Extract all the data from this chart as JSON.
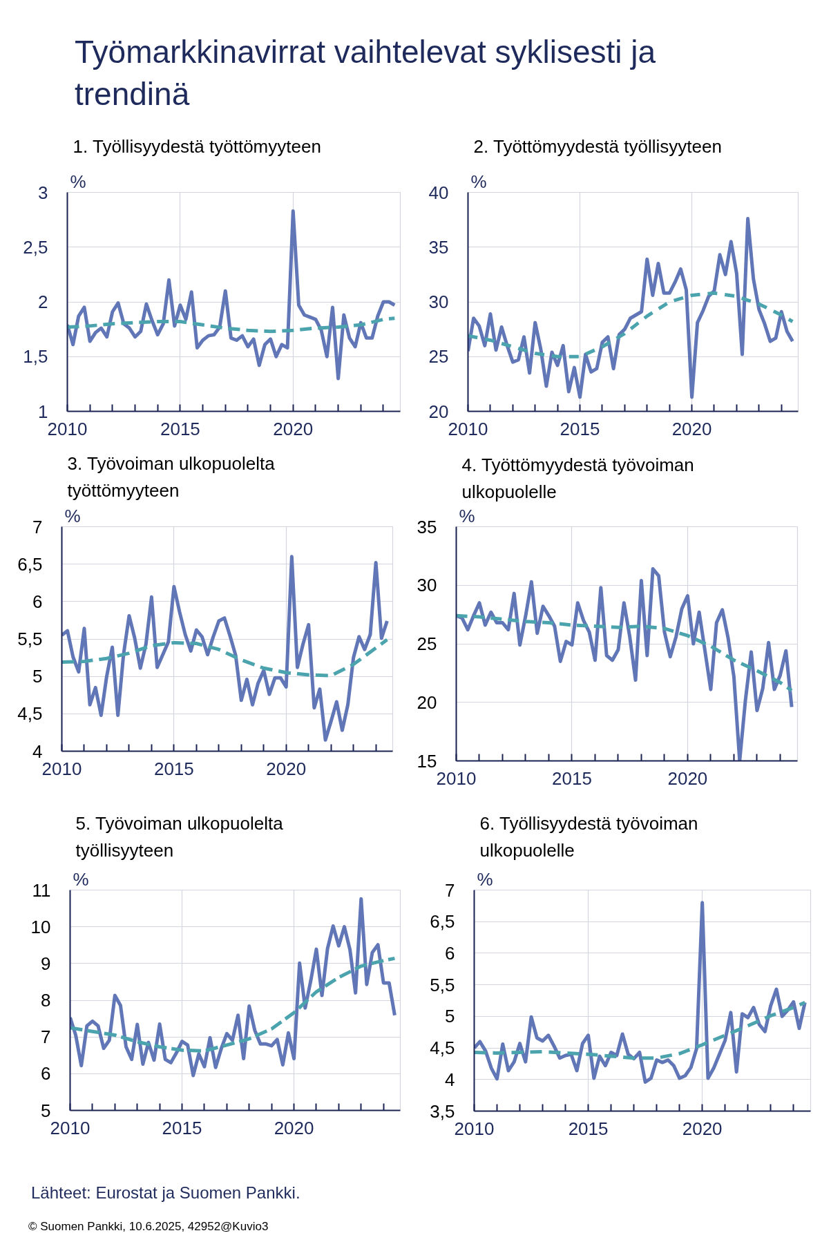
{
  "chart_data": [
    {
      "type": "other",
      "title": "Työmarkkinavirrat vaihtelevat syklisesti ja trendinä"
    },
    {
      "type": "line",
      "title": "1. Työllisyydestä työttömyyteen",
      "ylabel": "%",
      "grid": true,
      "x": [
        2010,
        2010.25,
        2010.5,
        2010.75,
        2011,
        2011.25,
        2011.5,
        2011.75,
        2012,
        2012.25,
        2012.5,
        2012.75,
        2013,
        2013.25,
        2013.5,
        2013.75,
        2014,
        2014.25,
        2014.5,
        2014.75,
        2015,
        2015.25,
        2015.5,
        2015.75,
        2016,
        2016.25,
        2016.5,
        2016.75,
        2017,
        2017.25,
        2017.5,
        2017.75,
        2018,
        2018.25,
        2018.5,
        2018.75,
        2019,
        2019.25,
        2019.5,
        2019.75,
        2020,
        2020.25,
        2020.5,
        2020.75,
        2021,
        2021.25,
        2021.5,
        2021.75,
        2022,
        2022.25,
        2022.5,
        2022.75,
        2023,
        2023.25,
        2023.5,
        2023.75,
        2024,
        2024.25,
        2024.5
      ],
      "xlim": [
        2010,
        2024.75
      ],
      "xticks": [
        2010,
        {
          "value": 2011,
          "label": null
        },
        {
          "value": 2012,
          "label": null
        },
        {
          "value": 2013,
          "label": null
        },
        {
          "value": 2014,
          "label": null
        },
        2015,
        {
          "value": 2016,
          "label": null
        },
        {
          "value": 2017,
          "label": null
        },
        {
          "value": 2018,
          "label": null
        },
        {
          "value": 2019,
          "label": null
        },
        2020,
        {
          "value": 2021,
          "label": null
        },
        {
          "value": 2022,
          "label": null
        },
        {
          "value": 2023,
          "label": null
        },
        {
          "value": 2024,
          "label": null
        }
      ],
      "ylim": [
        1,
        3
      ],
      "yticks": [
        1,
        {
          "value": 1.5,
          "label": "1,5"
        },
        2,
        {
          "value": 2.5,
          "label": "2,5"
        },
        3
      ],
      "series": [
        {
          "color": "#6176b6",
          "line_style": "solid",
          "values": [
            1.79,
            1.61,
            1.87,
            1.95,
            1.64,
            1.72,
            1.76,
            1.68,
            1.91,
            1.99,
            1.8,
            1.76,
            1.68,
            1.73,
            1.98,
            1.83,
            1.7,
            1.8,
            2.2,
            1.78,
            1.97,
            1.84,
            2.09,
            1.58,
            1.65,
            1.69,
            1.7,
            1.77,
            2.1,
            1.67,
            1.65,
            1.69,
            1.59,
            1.66,
            1.42,
            1.61,
            1.66,
            1.5,
            1.61,
            1.58,
            2.83,
            1.97,
            1.88,
            1.86,
            1.84,
            1.74,
            1.5,
            1.95,
            1.3,
            1.88,
            1.67,
            1.59,
            1.81,
            1.67,
            1.67,
            1.87,
            2.0,
            2.0,
            1.97
          ]
        },
        {
          "color": "#4ba4ad",
          "line_style": "dashed",
          "x": [
            2010,
            2011,
            2012,
            2013,
            2014,
            2015,
            2016,
            2017,
            2018,
            2019,
            2020,
            2021,
            2022,
            2023,
            2024,
            2024.5
          ],
          "values": [
            1.77,
            1.78,
            1.8,
            1.81,
            1.82,
            1.82,
            1.79,
            1.76,
            1.74,
            1.73,
            1.74,
            1.76,
            1.77,
            1.79,
            1.84,
            1.85
          ]
        }
      ]
    },
    {
      "type": "line",
      "title": "2. Työttömyydestä työllisyyteen",
      "ylabel": "%",
      "grid": true,
      "x": [
        2010,
        2010.25,
        2010.5,
        2010.75,
        2011,
        2011.25,
        2011.5,
        2011.75,
        2012,
        2012.25,
        2012.5,
        2012.75,
        2013,
        2013.25,
        2013.5,
        2013.75,
        2014,
        2014.25,
        2014.5,
        2014.75,
        2015,
        2015.25,
        2015.5,
        2015.75,
        2016,
        2016.25,
        2016.5,
        2016.75,
        2017,
        2017.25,
        2017.5,
        2017.75,
        2018,
        2018.25,
        2018.5,
        2018.75,
        2019,
        2019.25,
        2019.5,
        2019.75,
        2020,
        2020.25,
        2020.5,
        2020.75,
        2021,
        2021.25,
        2021.5,
        2021.75,
        2022,
        2022.25,
        2022.5,
        2022.75,
        2023,
        2023.25,
        2023.5,
        2023.75,
        2024,
        2024.25,
        2024.5
      ],
      "xlim": [
        2010,
        2024.75
      ],
      "xticks": [
        2010,
        {
          "value": 2011,
          "label": null
        },
        {
          "value": 2012,
          "label": null
        },
        {
          "value": 2013,
          "label": null
        },
        {
          "value": 2014,
          "label": null
        },
        2015,
        {
          "value": 2016,
          "label": null
        },
        {
          "value": 2017,
          "label": null
        },
        {
          "value": 2018,
          "label": null
        },
        {
          "value": 2019,
          "label": null
        },
        2020,
        {
          "value": 2021,
          "label": null
        },
        {
          "value": 2022,
          "label": null
        },
        {
          "value": 2023,
          "label": null
        },
        {
          "value": 2024,
          "label": null
        }
      ],
      "ylim": [
        20,
        40
      ],
      "yticks": [
        20,
        25,
        30,
        35,
        40
      ],
      "series": [
        {
          "color": "#6176b6",
          "line_style": "solid",
          "values": [
            25.5,
            28.5,
            27.8,
            26.0,
            28.9,
            25.6,
            27.7,
            26.0,
            24.5,
            24.7,
            26.8,
            23.5,
            28.1,
            25.7,
            22.3,
            25.4,
            24.2,
            26.0,
            21.8,
            24.0,
            21.3,
            25.2,
            23.6,
            23.9,
            26.3,
            26.8,
            23.9,
            27.0,
            27.5,
            28.5,
            28.8,
            29.1,
            33.9,
            30.6,
            33.5,
            30.8,
            30.8,
            31.8,
            33.0,
            31.1,
            21.3,
            28.1,
            29.2,
            30.5,
            31.0,
            34.3,
            32.5,
            35.5,
            32.6,
            25.2,
            37.6,
            32.1,
            29.3,
            28.0,
            26.4,
            26.7,
            29.1,
            27.3,
            26.4
          ]
        },
        {
          "color": "#4ba4ad",
          "line_style": "dashed",
          "x": [
            2010,
            2011,
            2012,
            2013,
            2014,
            2015,
            2016,
            2017,
            2018,
            2019,
            2020,
            2021,
            2022,
            2023,
            2024,
            2024.5
          ],
          "values": [
            26.9,
            26.5,
            25.9,
            25.3,
            25.0,
            25.0,
            25.9,
            27.1,
            28.7,
            30.0,
            30.6,
            30.8,
            30.5,
            29.8,
            28.8,
            28.2
          ]
        }
      ]
    },
    {
      "type": "line",
      "title": "3. Työvoiman ulkopuolelta työttömyyteen",
      "ylabel": "%",
      "grid": true,
      "x": [
        2010,
        2010.25,
        2010.5,
        2010.75,
        2011,
        2011.25,
        2011.5,
        2011.75,
        2012,
        2012.25,
        2012.5,
        2012.75,
        2013,
        2013.25,
        2013.5,
        2013.75,
        2014,
        2014.25,
        2014.5,
        2014.75,
        2015,
        2015.25,
        2015.5,
        2015.75,
        2016,
        2016.25,
        2016.5,
        2016.75,
        2017,
        2017.25,
        2017.5,
        2017.75,
        2018,
        2018.25,
        2018.5,
        2018.75,
        2019,
        2019.25,
        2019.5,
        2019.75,
        2020,
        2020.25,
        2020.5,
        2020.75,
        2021,
        2021.25,
        2021.5,
        2021.75,
        2022,
        2022.25,
        2022.5,
        2022.75,
        2023,
        2023.25,
        2023.5,
        2023.75,
        2024,
        2024.25,
        2024.5
      ],
      "xlim": [
        2010,
        2024.75
      ],
      "xticks": [
        2010,
        {
          "value": 2011,
          "label": null
        },
        {
          "value": 2012,
          "label": null
        },
        {
          "value": 2013,
          "label": null
        },
        {
          "value": 2014,
          "label": null
        },
        2015,
        {
          "value": 2016,
          "label": null
        },
        {
          "value": 2017,
          "label": null
        },
        {
          "value": 2018,
          "label": null
        },
        {
          "value": 2019,
          "label": null
        },
        2020,
        {
          "value": 2021,
          "label": null
        },
        {
          "value": 2022,
          "label": null
        },
        {
          "value": 2023,
          "label": null
        },
        {
          "value": 2024,
          "label": null
        }
      ],
      "ylim": [
        4,
        7
      ],
      "yticks": [
        4,
        {
          "value": 4.5,
          "label": "4,5"
        },
        5,
        {
          "value": 5.5,
          "label": "5,5"
        },
        6,
        {
          "value": 6.5,
          "label": "6,5"
        },
        7
      ],
      "series": [
        {
          "color": "#6176b6",
          "line_style": "solid",
          "values": [
            5.55,
            5.61,
            5.26,
            5.06,
            5.64,
            4.62,
            4.85,
            4.48,
            5.0,
            5.39,
            4.48,
            5.29,
            5.81,
            5.51,
            5.11,
            5.43,
            6.06,
            5.12,
            5.29,
            5.46,
            6.2,
            5.86,
            5.56,
            5.34,
            5.62,
            5.53,
            5.29,
            5.53,
            5.74,
            5.78,
            5.54,
            5.28,
            4.68,
            4.96,
            4.62,
            4.91,
            5.08,
            4.76,
            4.98,
            4.98,
            4.86,
            6.6,
            5.12,
            5.43,
            5.69,
            4.58,
            4.83,
            4.15,
            4.4,
            4.66,
            4.28,
            4.62,
            5.25,
            5.53,
            5.36,
            5.56,
            6.52,
            5.51,
            5.74
          ]
        },
        {
          "color": "#4ba4ad",
          "line_style": "dashed",
          "x": [
            2010,
            2011,
            2012,
            2013,
            2014,
            2015,
            2016,
            2017,
            2018,
            2019,
            2020,
            2021,
            2022,
            2023,
            2024,
            2024.5
          ],
          "values": [
            5.19,
            5.2,
            5.24,
            5.31,
            5.41,
            5.45,
            5.44,
            5.36,
            5.22,
            5.11,
            5.05,
            5.02,
            5.01,
            5.16,
            5.38,
            5.49
          ]
        }
      ]
    },
    {
      "type": "line",
      "title": "4. Työttömyydestä työvoiman ulkopuolelle",
      "ylabel": "%",
      "grid": true,
      "x": [
        2010,
        2010.25,
        2010.5,
        2010.75,
        2011,
        2011.25,
        2011.5,
        2011.75,
        2012,
        2012.25,
        2012.5,
        2012.75,
        2013,
        2013.25,
        2013.5,
        2013.75,
        2014,
        2014.25,
        2014.5,
        2014.75,
        2015,
        2015.25,
        2015.5,
        2015.75,
        2016,
        2016.25,
        2016.5,
        2016.75,
        2017,
        2017.25,
        2017.5,
        2017.75,
        2018,
        2018.25,
        2018.5,
        2018.75,
        2019,
        2019.25,
        2019.5,
        2019.75,
        2020,
        2020.25,
        2020.5,
        2020.75,
        2021,
        2021.25,
        2021.5,
        2021.75,
        2022,
        2022.25,
        2022.5,
        2022.75,
        2023,
        2023.25,
        2023.5,
        2023.75,
        2024,
        2024.25,
        2024.5
      ],
      "xlim": [
        2010,
        2024.75
      ],
      "xticks": [
        2010,
        {
          "value": 2011,
          "label": null
        },
        {
          "value": 2012,
          "label": null
        },
        {
          "value": 2013,
          "label": null
        },
        {
          "value": 2014,
          "label": null
        },
        2015,
        {
          "value": 2016,
          "label": null
        },
        {
          "value": 2017,
          "label": null
        },
        {
          "value": 2018,
          "label": null
        },
        {
          "value": 2019,
          "label": null
        },
        2020,
        {
          "value": 2021,
          "label": null
        },
        {
          "value": 2022,
          "label": null
        },
        {
          "value": 2023,
          "label": null
        },
        {
          "value": 2024,
          "label": null
        }
      ],
      "ylim": [
        15,
        35
      ],
      "yticks": [
        15,
        20,
        25,
        30,
        35
      ],
      "series": [
        {
          "color": "#6176b6",
          "line_style": "solid",
          "values": [
            27.4,
            27.2,
            26.2,
            27.4,
            28.5,
            26.6,
            27.7,
            26.8,
            26.8,
            26.2,
            29.3,
            24.9,
            27.4,
            30.3,
            25.9,
            28.2,
            27.4,
            26.5,
            23.5,
            25.2,
            24.9,
            28.5,
            27.0,
            26.0,
            23.6,
            29.8,
            24.0,
            23.6,
            24.5,
            28.5,
            25.6,
            21.9,
            30.4,
            24.0,
            31.4,
            30.8,
            26.0,
            23.9,
            25.6,
            28.0,
            29.1,
            25.0,
            27.7,
            24.4,
            21.1,
            26.8,
            27.9,
            25.5,
            22.2,
            15.0,
            20.2,
            24.3,
            19.3,
            21.2,
            25.1,
            21.1,
            22.3,
            24.4,
            19.6
          ]
        },
        {
          "color": "#4ba4ad",
          "line_style": "dashed",
          "x": [
            2010,
            2011,
            2012,
            2013,
            2014,
            2015,
            2016,
            2017,
            2018,
            2019,
            2020,
            2021,
            2022,
            2023,
            2024,
            2024.5
          ],
          "values": [
            27.4,
            27.3,
            27.1,
            26.9,
            26.8,
            26.6,
            26.5,
            26.4,
            26.5,
            26.3,
            25.7,
            24.8,
            23.6,
            22.7,
            21.7,
            21.0
          ]
        }
      ]
    },
    {
      "type": "line",
      "title": "5. Työvoiman ulkopuolelta työllisyyteen",
      "ylabel": "%",
      "grid": true,
      "x": [
        2010,
        2010.25,
        2010.5,
        2010.75,
        2011,
        2011.25,
        2011.5,
        2011.75,
        2012,
        2012.25,
        2012.5,
        2012.75,
        2013,
        2013.25,
        2013.5,
        2013.75,
        2014,
        2014.25,
        2014.5,
        2014.75,
        2015,
        2015.25,
        2015.5,
        2015.75,
        2016,
        2016.25,
        2016.5,
        2016.75,
        2017,
        2017.25,
        2017.5,
        2017.75,
        2018,
        2018.25,
        2018.5,
        2018.75,
        2019,
        2019.25,
        2019.5,
        2019.75,
        2020,
        2020.25,
        2020.5,
        2020.75,
        2021,
        2021.25,
        2021.5,
        2021.75,
        2022,
        2022.25,
        2022.5,
        2022.75,
        2023,
        2023.25,
        2023.5,
        2023.75,
        2024,
        2024.25,
        2024.5
      ],
      "xlim": [
        2010,
        2024.75
      ],
      "xticks": [
        2010,
        {
          "value": 2011,
          "label": null
        },
        {
          "value": 2012,
          "label": null
        },
        {
          "value": 2013,
          "label": null
        },
        {
          "value": 2014,
          "label": null
        },
        2015,
        {
          "value": 2016,
          "label": null
        },
        {
          "value": 2017,
          "label": null
        },
        {
          "value": 2018,
          "label": null
        },
        {
          "value": 2019,
          "label": null
        },
        2020,
        {
          "value": 2021,
          "label": null
        },
        {
          "value": 2022,
          "label": null
        },
        {
          "value": 2023,
          "label": null
        },
        {
          "value": 2024,
          "label": null
        }
      ],
      "ylim": [
        5,
        11
      ],
      "yticks": [
        5,
        6,
        7,
        8,
        9,
        10,
        11
      ],
      "series": [
        {
          "color": "#6176b6",
          "line_style": "solid",
          "values": [
            7.53,
            7.05,
            6.22,
            7.3,
            7.43,
            7.3,
            6.69,
            6.91,
            8.13,
            7.86,
            6.73,
            6.39,
            7.34,
            6.26,
            6.85,
            6.37,
            7.35,
            6.39,
            6.3,
            6.57,
            6.88,
            6.78,
            5.95,
            6.54,
            6.19,
            6.98,
            6.17,
            6.68,
            7.09,
            6.91,
            7.59,
            6.41,
            7.84,
            7.18,
            6.81,
            6.81,
            6.76,
            6.93,
            6.24,
            7.11,
            6.41,
            9.01,
            7.79,
            8.53,
            9.39,
            8.13,
            9.41,
            10.02,
            9.48,
            10.0,
            9.38,
            8.2,
            10.76,
            8.43,
            9.3,
            9.51,
            8.47,
            8.47,
            7.59
          ]
        },
        {
          "color": "#4ba4ad",
          "line_style": "dashed",
          "x": [
            2010,
            2011,
            2012,
            2013,
            2014,
            2015,
            2016,
            2017,
            2018,
            2019,
            2020,
            2021,
            2022,
            2023,
            2024,
            2024.5
          ],
          "values": [
            7.25,
            7.15,
            7.05,
            6.87,
            6.73,
            6.64,
            6.62,
            6.78,
            6.95,
            7.22,
            7.66,
            8.23,
            8.62,
            8.93,
            9.08,
            9.14
          ]
        }
      ]
    },
    {
      "type": "line",
      "title": "6. Työllisyydestä työvoiman ulkopuolelle",
      "ylabel": "%",
      "grid": true,
      "x": [
        2010,
        2010.25,
        2010.5,
        2010.75,
        2011,
        2011.25,
        2011.5,
        2011.75,
        2012,
        2012.25,
        2012.5,
        2012.75,
        2013,
        2013.25,
        2013.5,
        2013.75,
        2014,
        2014.25,
        2014.5,
        2014.75,
        2015,
        2015.25,
        2015.5,
        2015.75,
        2016,
        2016.25,
        2016.5,
        2016.75,
        2017,
        2017.25,
        2017.5,
        2017.75,
        2018,
        2018.25,
        2018.5,
        2018.75,
        2019,
        2019.25,
        2019.5,
        2019.75,
        2020,
        2020.25,
        2020.5,
        2020.75,
        2021,
        2021.25,
        2021.5,
        2021.75,
        2022,
        2022.25,
        2022.5,
        2022.75,
        2023,
        2023.25,
        2023.5,
        2023.75,
        2024,
        2024.25,
        2024.5
      ],
      "xlim": [
        2010,
        2024.75
      ],
      "xticks": [
        2010,
        {
          "value": 2011,
          "label": null
        },
        {
          "value": 2012,
          "label": null
        },
        {
          "value": 2013,
          "label": null
        },
        {
          "value": 2014,
          "label": null
        },
        2015,
        {
          "value": 2016,
          "label": null
        },
        {
          "value": 2017,
          "label": null
        },
        {
          "value": 2018,
          "label": null
        },
        {
          "value": 2019,
          "label": null
        },
        2020,
        {
          "value": 2021,
          "label": null
        },
        {
          "value": 2022,
          "label": null
        },
        {
          "value": 2023,
          "label": null
        },
        {
          "value": 2024,
          "label": null
        }
      ],
      "ylim": [
        3.5,
        7
      ],
      "yticks": [
        {
          "value": 3.5,
          "label": "3,5"
        },
        4,
        {
          "value": 4.5,
          "label": "4,5"
        },
        5,
        {
          "value": 5.5,
          "label": "5,5"
        },
        6,
        {
          "value": 6.5,
          "label": "6,5"
        },
        7
      ],
      "series": [
        {
          "color": "#6176b6",
          "line_style": "solid",
          "values": [
            4.5,
            4.6,
            4.45,
            4.18,
            4.01,
            4.56,
            4.14,
            4.28,
            4.57,
            4.28,
            4.99,
            4.66,
            4.61,
            4.7,
            4.53,
            4.34,
            4.38,
            4.4,
            4.14,
            4.57,
            4.7,
            4.02,
            4.37,
            4.22,
            4.43,
            4.38,
            4.72,
            4.4,
            4.33,
            4.43,
            3.96,
            4.02,
            4.31,
            4.27,
            4.31,
            4.22,
            4.02,
            4.06,
            4.19,
            4.49,
            6.8,
            4.02,
            4.18,
            4.4,
            4.62,
            5.06,
            4.12,
            5.04,
            4.98,
            5.14,
            4.87,
            4.76,
            5.17,
            5.43,
            5.0,
            5.1,
            5.23,
            4.81,
            5.22
          ]
        },
        {
          "color": "#4ba4ad",
          "line_style": "dashed",
          "x": [
            2010,
            2011,
            2012,
            2013,
            2014,
            2015,
            2016,
            2017,
            2018,
            2019,
            2020,
            2021,
            2022,
            2023,
            2024,
            2024.5
          ],
          "values": [
            4.43,
            4.42,
            4.43,
            4.44,
            4.42,
            4.4,
            4.37,
            4.34,
            4.34,
            4.41,
            4.55,
            4.7,
            4.85,
            5.01,
            5.14,
            5.22
          ]
        }
      ]
    },
    {
      "type": "other",
      "annotations": [
        "Lähteet: Eurostat ja Suomen Pankki.",
        "© Suomen Pankki, 10.6.2025, 42952@Kuvio3"
      ]
    }
  ]
}
